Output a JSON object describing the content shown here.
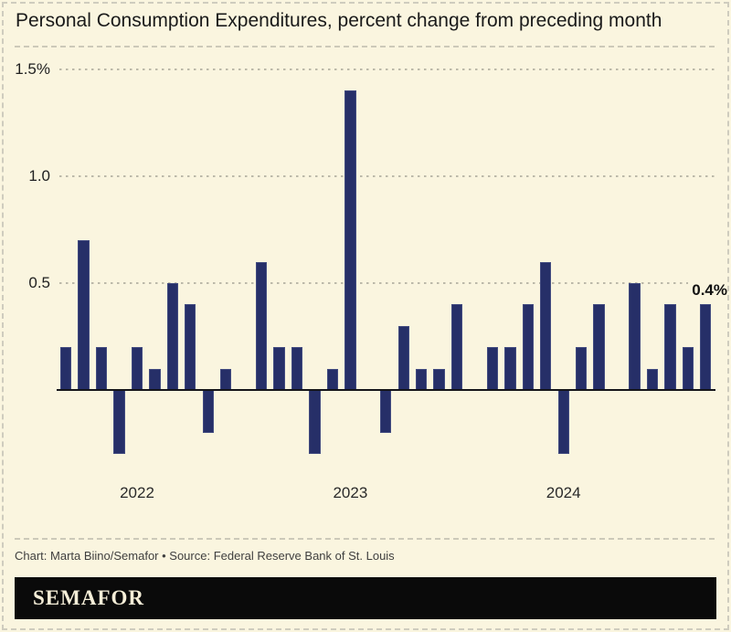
{
  "title": "Personal Consumption Expenditures, percent change from preceding month",
  "chart_data": {
    "type": "bar",
    "series_name": "Personal Consumption Expenditures, percent change from preceding month",
    "x_unit": "month",
    "values": [
      0.2,
      0.7,
      0.2,
      -0.3,
      0.2,
      0.1,
      0.5,
      0.4,
      -0.2,
      0.1,
      0.0,
      0.6,
      0.2,
      0.2,
      -0.3,
      0.1,
      1.4,
      0.0,
      -0.2,
      0.3,
      0.1,
      0.1,
      0.4,
      0.0,
      0.2,
      0.2,
      0.4,
      0.6,
      -0.3,
      0.2,
      0.4,
      0.0,
      0.5,
      0.1,
      0.4,
      0.2,
      0.4
    ],
    "year_ticks": [
      {
        "label": "2022",
        "month_index": 4
      },
      {
        "label": "2023",
        "month_index": 16
      },
      {
        "label": "2024",
        "month_index": 28
      }
    ],
    "y_ticks": [
      {
        "value": 1.5,
        "label": "1.5%"
      },
      {
        "value": 1.0,
        "label": "1.0"
      },
      {
        "value": 0.5,
        "label": "0.5"
      }
    ],
    "ylim": [
      -0.5,
      1.6
    ],
    "baseline": 0,
    "grid": "dotted-horizontal",
    "legend": "none",
    "last_value_label": "0.4%"
  },
  "footer": {
    "credit": "Chart: Marta Biino/Semafor • Source: Federal Reserve Bank of St. Louis",
    "logo_text": "SEMAFOR"
  },
  "colors": {
    "background": "#faf5df",
    "bar": "#262f68",
    "axis": "#15151a",
    "gridline": "#bcb9a9",
    "separator": "#ccc9b9",
    "border": "#cfccbe",
    "text": "#1a1a1a",
    "credit_text": "#3f3f3f",
    "logo_bg": "#0a0a0a",
    "logo_text": "#f5eed8"
  }
}
